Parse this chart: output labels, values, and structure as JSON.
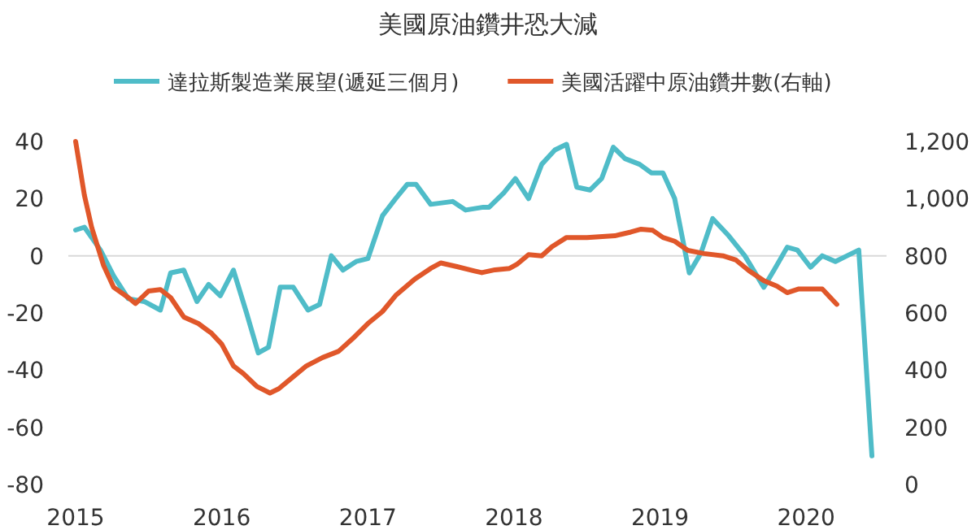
{
  "chart_data": {
    "type": "line",
    "title": "美國原油鑽井恐大減",
    "legend": "top",
    "ref_lines": [
      {
        "axis": "y",
        "value": 0,
        "color": "#d9d9d9"
      }
    ],
    "line_style": "solid",
    "marker": "none",
    "xlim": [
      2014.95,
      2020.55
    ],
    "xticks": [
      2015,
      2016,
      2017,
      2018,
      2019,
      2020
    ],
    "ylim": [
      -80,
      40
    ],
    "yticks": [
      -80,
      -60,
      -40,
      -20,
      0,
      20,
      40
    ],
    "y2lim": [
      0,
      1200
    ],
    "y2ticks": [
      {
        "value": 0,
        "label": "0"
      },
      {
        "value": 200,
        "label": "200"
      },
      {
        "value": 400,
        "label": "400"
      },
      {
        "value": 600,
        "label": "600"
      },
      {
        "value": 800,
        "label": "800"
      },
      {
        "value": 1000,
        "label": "1,000"
      },
      {
        "value": 1200,
        "label": "1,200"
      }
    ],
    "series": [
      {
        "name": "達拉斯製造業展望(遞延三個月)",
        "color": "#4fbcc8",
        "axis": "y",
        "x": [
          2015.0,
          2015.06,
          2015.17,
          2015.26,
          2015.36,
          2015.47,
          2015.58,
          2015.65,
          2015.74,
          2015.83,
          2015.91,
          2015.99,
          2016.08,
          2016.17,
          2016.25,
          2016.32,
          2016.4,
          2016.49,
          2016.59,
          2016.67,
          2016.75,
          2016.83,
          2016.92,
          2017.0,
          2017.1,
          2017.19,
          2017.27,
          2017.33,
          2017.43,
          2017.58,
          2017.67,
          2017.79,
          2017.83,
          2017.93,
          2018.01,
          2018.1,
          2018.19,
          2018.28,
          2018.36,
          2018.43,
          2018.52,
          2018.6,
          2018.68,
          2018.76,
          2018.86,
          2018.94,
          2019.02,
          2019.1,
          2019.2,
          2019.28,
          2019.36,
          2019.47,
          2019.58,
          2019.71,
          2019.78,
          2019.87,
          2019.94,
          2020.03,
          2020.11,
          2020.2,
          2020.28,
          2020.36,
          2020.45
        ],
        "values": [
          9,
          10,
          2,
          -7,
          -15,
          -16,
          -19,
          -6,
          -5,
          -16,
          -10,
          -14,
          -5,
          -20,
          -34,
          -32,
          -11,
          -11,
          -19,
          -17,
          0,
          -5,
          -2,
          -1,
          14,
          20,
          25,
          25,
          18,
          19,
          16,
          17,
          17,
          22,
          27,
          20,
          32,
          37,
          39,
          24,
          23,
          27,
          38,
          34,
          32,
          29,
          29,
          20,
          -6,
          1,
          13,
          7,
          0,
          -11,
          -5,
          3,
          2,
          -4,
          0,
          -2,
          0,
          2,
          -70
        ]
      },
      {
        "name": "美國活躍中原油鑽井數(右軸)",
        "color": "#e0572a",
        "axis": "y2",
        "x": [
          2015.0,
          2015.06,
          2015.11,
          2015.19,
          2015.26,
          2015.36,
          2015.41,
          2015.5,
          2015.58,
          2015.65,
          2015.74,
          2015.84,
          2015.93,
          2016.0,
          2016.08,
          2016.15,
          2016.24,
          2016.33,
          2016.39,
          2016.49,
          2016.58,
          2016.69,
          2016.8,
          2016.91,
          2017.0,
          2017.1,
          2017.19,
          2017.32,
          2017.43,
          2017.5,
          2017.61,
          2017.73,
          2017.78,
          2017.87,
          2017.97,
          2018.02,
          2018.1,
          2018.19,
          2018.26,
          2018.36,
          2018.5,
          2018.69,
          2018.8,
          2018.87,
          2018.95,
          2019.02,
          2019.1,
          2019.19,
          2019.3,
          2019.43,
          2019.52,
          2019.61,
          2019.71,
          2019.8,
          2019.87,
          2019.95,
          2020.11,
          2020.21
        ],
        "values": [
          1200,
          1012,
          899,
          768,
          690,
          654,
          633,
          677,
          682,
          654,
          586,
          563,
          529,
          491,
          415,
          387,
          343,
          320,
          335,
          377,
          415,
          444,
          466,
          517,
          563,
          605,
          661,
          718,
          756,
          775,
          762,
          747,
          741,
          751,
          756,
          770,
          804,
          800,
          832,
          864,
          864,
          870,
          883,
          893,
          889,
          864,
          851,
          819,
          808,
          800,
          785,
          747,
          713,
          694,
          671,
          684,
          684,
          630
        ]
      }
    ]
  }
}
